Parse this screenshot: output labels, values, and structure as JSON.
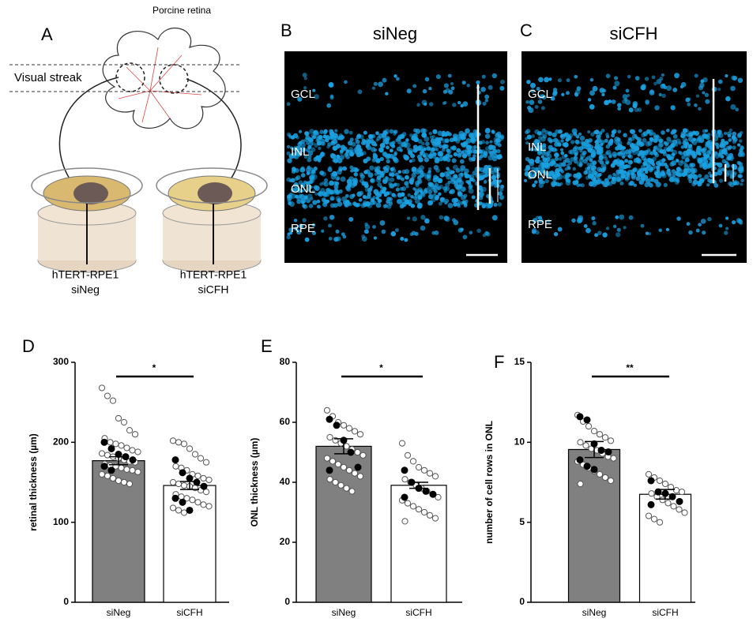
{
  "panels": {
    "a": {
      "label": "A",
      "title": "Porcine retina",
      "streak": "Visual streak",
      "left_cells": "hTERT-RPE1",
      "left_condition": "siNeg",
      "right_cells": "hTERT-RPE1",
      "right_condition": "siCFH"
    },
    "b": {
      "label": "B",
      "title": "siNeg",
      "layers": [
        "GCL",
        "INL",
        "ONL",
        "RPE"
      ]
    },
    "c": {
      "label": "C",
      "title": "siCFH",
      "layers": [
        "GCL",
        "INL",
        "ONL",
        "RPE"
      ]
    }
  },
  "chart_data": [
    {
      "type": "bar",
      "panel": "D",
      "ylabel": "retinal thickness (µm)",
      "categories": [
        "siNeg",
        "siCFH"
      ],
      "values": [
        177,
        146
      ],
      "errors": [
        5,
        5
      ],
      "colors": [
        "#808080",
        "#ffffff"
      ],
      "annotation": "*",
      "points": [
        [
          268,
          258,
          252,
          230,
          225,
          215,
          210,
          205,
          200,
          198,
          196,
          193,
          190,
          188,
          186,
          184,
          182,
          180,
          178,
          176,
          175,
          173,
          171,
          170,
          168,
          166,
          165,
          163,
          160,
          158,
          155,
          152,
          150,
          148
        ],
        [
          202,
          200,
          198,
          192,
          185,
          180,
          175,
          170,
          168,
          165,
          160,
          158,
          155,
          153,
          150,
          148,
          146,
          145,
          143,
          140,
          138,
          135,
          132,
          130,
          128,
          125,
          122,
          120,
          118,
          115,
          112
        ]
      ],
      "highlight_points": [
        [
          200,
          192,
          185,
          182,
          178,
          170,
          165
        ],
        [
          178,
          162,
          155,
          150,
          145,
          130,
          125,
          115
        ]
      ],
      "ylim": [
        0,
        300
      ],
      "yticks": [
        0,
        100,
        200,
        300
      ]
    },
    {
      "type": "bar",
      "panel": "E",
      "ylabel": "ONL thickness (µm)",
      "categories": [
        "siNeg",
        "siCFH"
      ],
      "values": [
        52,
        39
      ],
      "errors": [
        2.5,
        1
      ],
      "colors": [
        "#808080",
        "#ffffff"
      ],
      "annotation": "*",
      "points": [
        [
          64,
          62,
          60,
          59,
          58,
          57,
          56,
          55,
          54,
          53,
          52,
          51,
          50,
          49,
          48,
          47,
          46,
          45,
          44,
          43,
          42,
          41,
          40,
          39,
          38,
          37
        ],
        [
          53,
          49,
          47,
          45,
          44,
          43,
          42,
          41,
          40,
          39,
          38,
          37,
          36,
          35,
          34,
          33,
          32,
          31,
          30,
          29,
          28,
          27
        ]
      ],
      "highlight_points": [
        [
          61,
          59,
          54,
          50,
          45,
          44
        ],
        [
          44,
          40,
          38,
          37,
          36,
          35
        ]
      ],
      "ylim": [
        0,
        80
      ],
      "yticks": [
        0,
        20,
        40,
        60,
        80
      ]
    },
    {
      "type": "bar",
      "panel": "F",
      "ylabel": "number of cell rows in ONL",
      "categories": [
        "siNeg",
        "siCFH"
      ],
      "values": [
        9.55,
        6.75
      ],
      "errors": [
        0.5,
        0.3
      ],
      "colors": [
        "#808080",
        "#ffffff"
      ],
      "annotation": "**",
      "points": [
        [
          11.7,
          11.3,
          11,
          10.7,
          10.5,
          10.3,
          10.1,
          10,
          9.8,
          9.6,
          9.5,
          9.3,
          9.1,
          9,
          8.8,
          8.6,
          8.4,
          8.2,
          8,
          7.8,
          7.6,
          7.4
        ],
        [
          8,
          7.8,
          7.6,
          7.4,
          7.2,
          7,
          6.9,
          6.8,
          6.6,
          6.4,
          6.2,
          6,
          5.8,
          5.6,
          5.4,
          5.2,
          5
        ]
      ],
      "highlight_points": [
        [
          11.6,
          11.4,
          9.9,
          9.5,
          9.4,
          8.9,
          8.5,
          8.3
        ],
        [
          7.6,
          6.9,
          6.8,
          6.6,
          6.3,
          6.1
        ]
      ],
      "ylim": [
        0,
        15
      ],
      "yticks": [
        0,
        5,
        10,
        15
      ]
    }
  ]
}
